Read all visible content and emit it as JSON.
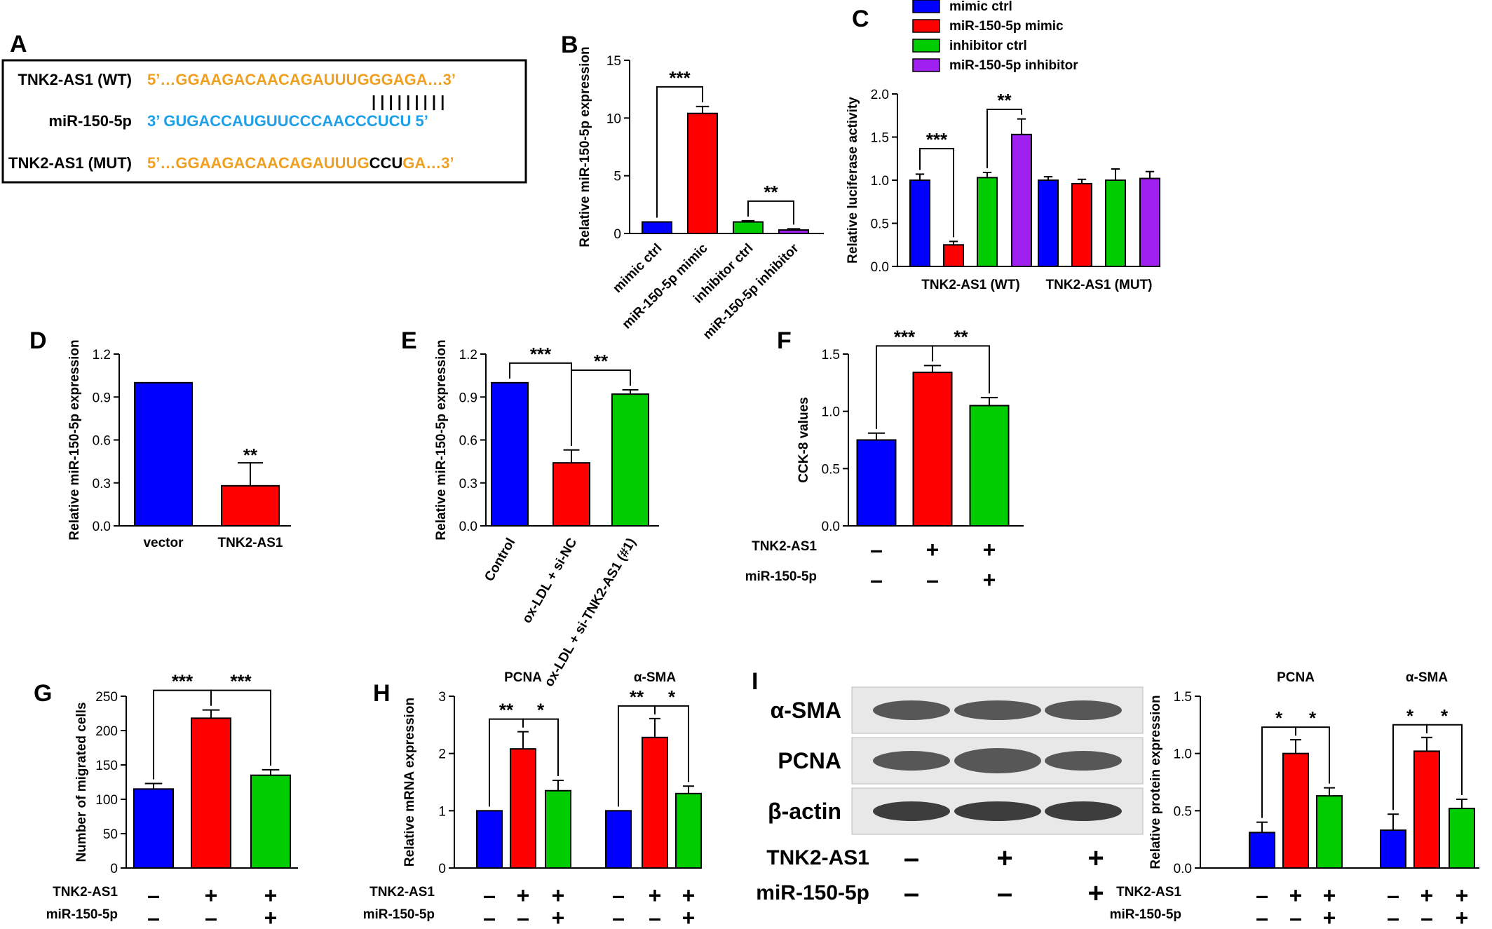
{
  "colors": {
    "blue": "#0000ff",
    "red": "#ff0000",
    "green": "#00cc00",
    "purple": "#a020f0",
    "orange": "#f0a020",
    "cyan": "#1ea0e8"
  },
  "panel_a": {
    "letter": "A",
    "rows": [
      {
        "label": "TNK2-AS1 (WT)",
        "parts": [
          {
            "text": "5’…GGAAGACAACAGAUUUGGGAGA…3’",
            "color": "#f0a020"
          }
        ]
      },
      {
        "label": "miR-150-5p",
        "parts": [
          {
            "text": "3’   GUGACCAUGUUCCCAACCCUCU   5’",
            "color": "#1ea0e8"
          }
        ]
      },
      {
        "label": "TNK2-AS1 (MUT)",
        "parts": [
          {
            "text": "5’…GGAAGACAACAGAUUUG",
            "color": "#f0a020"
          },
          {
            "text": "CCU",
            "color": "#000000"
          },
          {
            "text": "GA…3’",
            "color": "#f0a020"
          }
        ]
      }
    ],
    "pairing": "| | | | | | | | |"
  },
  "panel_i": {
    "letter": "I",
    "bands": [
      "α-SMA",
      "PCNA",
      "β-actin"
    ],
    "conditions": [
      {
        "label": "TNK2-AS1",
        "signs": [
          "-",
          "+",
          "+"
        ]
      },
      {
        "label": "miR-150-5p",
        "signs": [
          "-",
          "-",
          "+"
        ]
      }
    ]
  },
  "chart_data": [
    {
      "id": "B",
      "letter": "B",
      "type": "bar",
      "ylabel": "Relative miR-150-5p expression",
      "ylim": [
        0,
        15
      ],
      "yticks": [
        0,
        5,
        10,
        15
      ],
      "categories": [
        "mimic ctrl",
        "miR-150-5p mimic",
        "inhibitor ctrl",
        "miR-150-5p inhibitor"
      ],
      "values": [
        1.0,
        10.4,
        1.0,
        0.3
      ],
      "errors": [
        0,
        0.6,
        0.1,
        0.1
      ],
      "colors": [
        "#0000ff",
        "#ff0000",
        "#00cc00",
        "#a020f0"
      ],
      "significance": [
        {
          "from": 0,
          "to": 1,
          "label": "***"
        },
        {
          "from": 2,
          "to": 3,
          "label": "**"
        }
      ]
    },
    {
      "id": "C",
      "letter": "C",
      "type": "bar",
      "ylabel": "Relative luciferase activity",
      "ylim": [
        0,
        2.0
      ],
      "yticks": [
        "0.0",
        "0.5",
        "1.0",
        "1.5",
        "2.0"
      ],
      "categories": [
        "TNK2-AS1 (WT)",
        "TNK2-AS1 (MUT)"
      ],
      "legend": [
        "mimic ctrl",
        "miR-150-5p mimic",
        "inhibitor ctrl",
        "miR-150-5p inhibitor"
      ],
      "series": [
        {
          "name": "mimic ctrl",
          "values": [
            1.0,
            1.0
          ],
          "errors": [
            0.07,
            0.04
          ]
        },
        {
          "name": "miR-150-5p mimic",
          "values": [
            0.25,
            0.96
          ],
          "errors": [
            0.04,
            0.05
          ]
        },
        {
          "name": "inhibitor ctrl",
          "values": [
            1.03,
            1.0
          ],
          "errors": [
            0.06,
            0.13
          ]
        },
        {
          "name": "miR-150-5p inhibitor",
          "values": [
            1.53,
            1.02
          ],
          "errors": [
            0.18,
            0.08
          ]
        }
      ],
      "colors": [
        "#0000ff",
        "#ff0000",
        "#00cc00",
        "#a020f0"
      ],
      "significance": [
        {
          "group": 0,
          "from": 0,
          "to": 1,
          "label": "***"
        },
        {
          "group": 0,
          "from": 2,
          "to": 3,
          "label": "**"
        }
      ]
    },
    {
      "id": "D",
      "letter": "D",
      "type": "bar",
      "ylabel": "Relative miR-150-5p expression",
      "ylim": [
        0,
        1.2
      ],
      "yticks": [
        "0.0",
        "0.3",
        "0.6",
        "0.9",
        "1.2"
      ],
      "categories": [
        "vector",
        "TNK2-AS1"
      ],
      "values": [
        1.0,
        0.28
      ],
      "errors": [
        0,
        0.16
      ],
      "colors": [
        "#0000ff",
        "#ff0000"
      ],
      "marks": [
        {
          "bar": 1,
          "label": "**"
        }
      ]
    },
    {
      "id": "E",
      "letter": "E",
      "type": "bar",
      "ylabel": "Relative miR-150-5p expression",
      "ylim": [
        0,
        1.2
      ],
      "yticks": [
        "0.0",
        "0.3",
        "0.6",
        "0.9",
        "1.2"
      ],
      "categories": [
        "Control",
        "ox-LDL + si-NC",
        "ox-LDL + si-TNK2-AS1 (#1)"
      ],
      "values": [
        1.0,
        0.44,
        0.92
      ],
      "errors": [
        0,
        0.09,
        0.03
      ],
      "colors": [
        "#0000ff",
        "#ff0000",
        "#00cc00"
      ],
      "significance": [
        {
          "from": 0,
          "to": 1,
          "label": "***"
        },
        {
          "from": 1,
          "to": 2,
          "label": "**"
        }
      ]
    },
    {
      "id": "F",
      "letter": "F",
      "type": "bar",
      "ylabel": "CCK-8 values",
      "ylim": [
        0,
        1.5
      ],
      "yticks": [
        "0.0",
        "0.5",
        "1.0",
        "1.5"
      ],
      "values": [
        0.75,
        1.34,
        1.05
      ],
      "errors": [
        0.06,
        0.06,
        0.07
      ],
      "colors": [
        "#0000ff",
        "#ff0000",
        "#00cc00"
      ],
      "conditions": [
        {
          "label": "TNK2-AS1",
          "signs": [
            "-",
            "+",
            "+"
          ]
        },
        {
          "label": "miR-150-5p",
          "signs": [
            "-",
            "-",
            "+"
          ]
        }
      ],
      "significance": [
        {
          "from": 0,
          "to": 1,
          "label": "***"
        },
        {
          "from": 1,
          "to": 2,
          "label": "**"
        }
      ]
    },
    {
      "id": "G",
      "letter": "G",
      "type": "bar",
      "ylabel": "Number of migrated cells",
      "ylim": [
        0,
        250
      ],
      "yticks": [
        0,
        50,
        100,
        150,
        200,
        250
      ],
      "values": [
        115,
        218,
        135
      ],
      "errors": [
        8,
        12,
        8
      ],
      "colors": [
        "#0000ff",
        "#ff0000",
        "#00cc00"
      ],
      "conditions": [
        {
          "label": "TNK2-AS1",
          "signs": [
            "-",
            "+",
            "+"
          ]
        },
        {
          "label": "miR-150-5p",
          "signs": [
            "-",
            "-",
            "+"
          ]
        }
      ],
      "significance": [
        {
          "from": 0,
          "to": 1,
          "label": "***"
        },
        {
          "from": 1,
          "to": 2,
          "label": "***"
        }
      ]
    },
    {
      "id": "H",
      "letter": "H",
      "type": "bar",
      "ylabel": "Relative mRNA expression",
      "ylim": [
        0,
        3
      ],
      "yticks": [
        0,
        1,
        2,
        3
      ],
      "groups": [
        "PCNA",
        "α-SMA"
      ],
      "series": [
        {
          "values": [
            1.0,
            1.0
          ],
          "errors": [
            0,
            0
          ]
        },
        {
          "values": [
            2.08,
            2.28
          ],
          "errors": [
            0.3,
            0.33
          ]
        },
        {
          "values": [
            1.35,
            1.3
          ],
          "errors": [
            0.18,
            0.13
          ]
        }
      ],
      "colors": [
        "#0000ff",
        "#ff0000",
        "#00cc00"
      ],
      "conditions": [
        {
          "label": "TNK2-AS1",
          "signs": [
            "-",
            "+",
            "+",
            "-",
            "+",
            "+"
          ]
        },
        {
          "label": "miR-150-5p",
          "signs": [
            "-",
            "-",
            "+",
            "-",
            "-",
            "+"
          ]
        }
      ],
      "significance": [
        {
          "group": 0,
          "from": 0,
          "to": 1,
          "label": "**"
        },
        {
          "group": 0,
          "from": 1,
          "to": 2,
          "label": "*"
        },
        {
          "group": 1,
          "from": 0,
          "to": 1,
          "label": "**"
        },
        {
          "group": 1,
          "from": 1,
          "to": 2,
          "label": "*"
        }
      ]
    },
    {
      "id": "I2",
      "letter": "",
      "type": "bar",
      "ylabel": "Relative protein expression",
      "ylim": [
        0,
        1.5
      ],
      "yticks": [
        "0.0",
        "0.5",
        "1.0",
        "1.5"
      ],
      "groups": [
        "PCNA",
        "α-SMA"
      ],
      "series": [
        {
          "values": [
            0.31,
            0.33
          ],
          "errors": [
            0.09,
            0.14
          ]
        },
        {
          "values": [
            1.0,
            1.02
          ],
          "errors": [
            0.12,
            0.12
          ]
        },
        {
          "values": [
            0.63,
            0.52
          ],
          "errors": [
            0.07,
            0.08
          ]
        }
      ],
      "colors": [
        "#0000ff",
        "#ff0000",
        "#00cc00"
      ],
      "conditions": [
        {
          "label": "TNK2-AS1",
          "signs": [
            "-",
            "+",
            "+",
            "-",
            "+",
            "+"
          ]
        },
        {
          "label": "miR-150-5p",
          "signs": [
            "-",
            "-",
            "+",
            "-",
            "-",
            "+"
          ]
        }
      ],
      "significance": [
        {
          "group": 0,
          "from": 0,
          "to": 1,
          "label": "*"
        },
        {
          "group": 0,
          "from": 1,
          "to": 2,
          "label": "*"
        },
        {
          "group": 1,
          "from": 0,
          "to": 1,
          "label": "*"
        },
        {
          "group": 1,
          "from": 1,
          "to": 2,
          "label": "*"
        }
      ]
    }
  ]
}
